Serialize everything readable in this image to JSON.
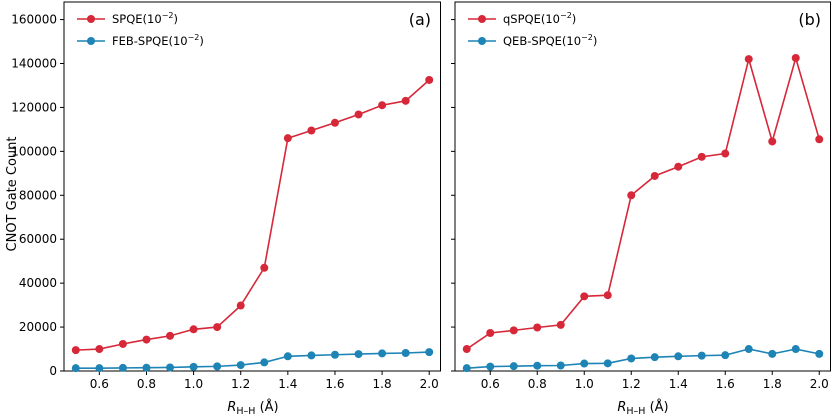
{
  "y_axis_label": "CNOT Gate Count",
  "x_axis_label": {
    "main": "R",
    "sub": "H–H",
    "unit": " (Å)"
  },
  "chart_data": [
    {
      "type": "line",
      "panel_label": "(a)",
      "x": [
        0.5,
        0.6,
        0.7,
        0.8,
        0.9,
        1.0,
        1.1,
        1.2,
        1.3,
        1.4,
        1.5,
        1.6,
        1.7,
        1.8,
        1.9,
        2.0
      ],
      "series": [
        {
          "name": "SPQE(10",
          "exp": "−2",
          "suffix": ")",
          "color": "#d62839",
          "values": [
            9500,
            10000,
            12300,
            14300,
            16000,
            19000,
            20000,
            29800,
            47000,
            106000,
            109500,
            113000,
            116800,
            121000,
            123000,
            132500
          ]
        },
        {
          "name": "FEB-SPQE(10",
          "exp": "−2",
          "suffix": ")",
          "color": "#1d84b5",
          "values": [
            1300,
            1300,
            1400,
            1500,
            1600,
            1900,
            2100,
            2700,
            3900,
            6700,
            7100,
            7400,
            7700,
            8000,
            8200,
            8600
          ]
        }
      ],
      "xlim": [
        0.45,
        2.05
      ],
      "ylim": [
        0,
        168000
      ],
      "xticks": [
        0.6,
        0.8,
        1.0,
        1.2,
        1.4,
        1.6,
        1.8,
        2.0
      ],
      "xtick_labels": [
        "0.6",
        "0.8",
        "1.0",
        "1.2",
        "1.4",
        "1.6",
        "1.8",
        "2.0"
      ],
      "yticks": [
        0,
        20000,
        40000,
        60000,
        80000,
        100000,
        120000,
        140000,
        160000
      ],
      "ytick_labels": [
        "0",
        "20000",
        "40000",
        "60000",
        "80000",
        "100000",
        "120000",
        "140000",
        "160000"
      ],
      "legend": "top-left"
    },
    {
      "type": "line",
      "panel_label": "(b)",
      "x": [
        0.5,
        0.6,
        0.7,
        0.8,
        0.9,
        1.0,
        1.1,
        1.2,
        1.3,
        1.4,
        1.5,
        1.6,
        1.7,
        1.8,
        1.9,
        2.0
      ],
      "series": [
        {
          "name": "qSPQE(10",
          "exp": "−2",
          "suffix": ")",
          "color": "#d62839",
          "values": [
            10000,
            17300,
            18500,
            19800,
            21000,
            34000,
            34500,
            80000,
            88800,
            93000,
            97500,
            99000,
            142000,
            104500,
            142500,
            105500
          ]
        },
        {
          "name": "QEB-SPQE(10",
          "exp": "−2",
          "suffix": ")",
          "color": "#1d84b5",
          "values": [
            1300,
            2000,
            2200,
            2400,
            2500,
            3400,
            3500,
            5700,
            6300,
            6700,
            7000,
            7200,
            10000,
            7800,
            10000,
            7800
          ]
        }
      ],
      "xlim": [
        0.45,
        2.05
      ],
      "ylim": [
        0,
        168000
      ],
      "xticks": [
        0.6,
        0.8,
        1.0,
        1.2,
        1.4,
        1.6,
        1.8,
        2.0
      ],
      "xtick_labels": [
        "0.6",
        "0.8",
        "1.0",
        "1.2",
        "1.4",
        "1.6",
        "1.8",
        "2.0"
      ],
      "yticks": [
        0,
        20000,
        40000,
        60000,
        80000,
        100000,
        120000,
        140000,
        160000
      ],
      "legend": "top-left"
    }
  ]
}
